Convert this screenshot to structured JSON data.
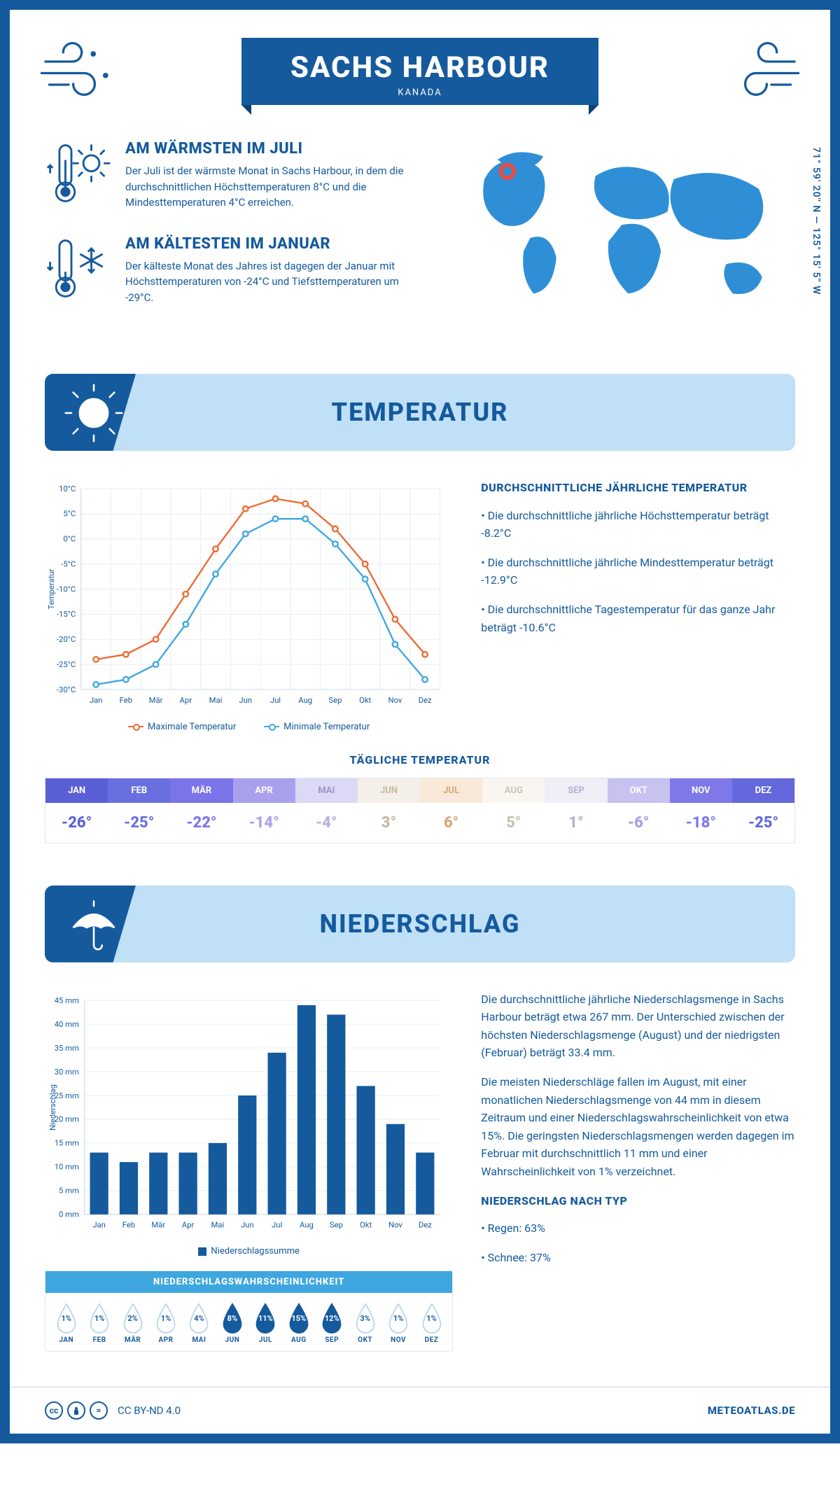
{
  "header": {
    "title": "SACHS HARBOUR",
    "subtitle": "KANADA"
  },
  "coords": "71° 59' 20'' N — 125° 15' 5'' W",
  "facts": {
    "warm": {
      "title": "AM WÄRMSTEN IM JULI",
      "text": "Der Juli ist der wärmste Monat in Sachs Harbour, in dem die durchschnittlichen Höchsttemperaturen 8°C und die Mindesttemperaturen 4°C erreichen."
    },
    "cold": {
      "title": "AM KÄLTESTEN IM JANUAR",
      "text": "Der kälteste Monat des Jahres ist dagegen der Januar mit Höchsttemperaturen von -24°C und Tiefsttemperaturen um -29°C."
    }
  },
  "map": {
    "marker_color": "#ef4b3f",
    "land_color": "#2f8fd6"
  },
  "sections": {
    "temp_title": "TEMPERATUR",
    "precip_title": "NIEDERSCHLAG"
  },
  "months": [
    "Jan",
    "Feb",
    "Mär",
    "Apr",
    "Mai",
    "Jun",
    "Jul",
    "Aug",
    "Sep",
    "Okt",
    "Nov",
    "Dez"
  ],
  "months_uc": [
    "JAN",
    "FEB",
    "MÄR",
    "APR",
    "MAI",
    "JUN",
    "JUL",
    "AUG",
    "SEP",
    "OKT",
    "NOV",
    "DEZ"
  ],
  "temp_chart": {
    "type": "line",
    "ylabel": "Temperatur",
    "ymin": -30,
    "ymax": 10,
    "ystep": 5,
    "unit_suffix": "°C",
    "max_series": {
      "label": "Maximale Temperatur",
      "color": "#ed6b33",
      "values": [
        -24,
        -23,
        -20,
        -11,
        -2,
        6,
        8,
        7,
        2,
        -5,
        -16,
        -23
      ]
    },
    "min_series": {
      "label": "Minimale Temperatur",
      "color": "#3ea7e0",
      "values": [
        -29,
        -28,
        -25,
        -17,
        -7,
        1,
        4,
        4,
        -1,
        -8,
        -21,
        -28
      ]
    },
    "grid_color": "#e5ecf5",
    "axis_color": "#c8d7ea",
    "bg": "#ffffff"
  },
  "temp_text": {
    "title": "DURCHSCHNITTLICHE JÄHRLICHE TEMPERATUR",
    "b1": "• Die durchschnittliche jährliche Höchsttemperatur beträgt -8.2°C",
    "b2": "• Die durchschnittliche jährliche Mindesttemperatur beträgt -12.9°C",
    "b3": "• Die durchschnittliche Tagestemperatur für das ganze Jahr beträgt -10.6°C"
  },
  "temp_table": {
    "title": "TÄGLICHE TEMPERATUR",
    "values": [
      "-26°",
      "-25°",
      "-22°",
      "-14°",
      "-4°",
      "3°",
      "6°",
      "5°",
      "1°",
      "-6°",
      "-18°",
      "-25°"
    ],
    "header_colors": [
      "#5a5fd6",
      "#6a6fe0",
      "#7b74e8",
      "#a9a1ee",
      "#dcd9f6",
      "#f5efe9",
      "#f9e9d9",
      "#f9f6f1",
      "#efedf6",
      "#c7c2f0",
      "#7f78e9",
      "#6468dc"
    ],
    "header_text_colors": [
      "#ffffff",
      "#ffffff",
      "#ffffff",
      "#ffffff",
      "#9a96c8",
      "#c7b79d",
      "#d6a873",
      "#c9c3b4",
      "#b4b0cf",
      "#ffffff",
      "#ffffff",
      "#ffffff"
    ],
    "value_text_colors": [
      "#5a5fd6",
      "#6a6fe0",
      "#7b74e8",
      "#a9a1ee",
      "#b7b3d9",
      "#c7b79d",
      "#d6a873",
      "#c9c3b4",
      "#b4b0cf",
      "#a39ee0",
      "#7f78e9",
      "#6468dc"
    ]
  },
  "precip_chart": {
    "type": "bar",
    "ylabel": "Niederschlag",
    "ymin": 0,
    "ymax": 45,
    "ystep": 5,
    "unit_suffix": " mm",
    "values": [
      13,
      11,
      13,
      13,
      15,
      25,
      34,
      44,
      42,
      27,
      19,
      13
    ],
    "bar_color": "#155a9d",
    "legend": "Niederschlagssumme",
    "grid_color": "#e5ecf5",
    "axis_color": "#c8d7ea"
  },
  "precip_text": {
    "p1": "Die durchschnittliche jährliche Niederschlagsmenge in Sachs Harbour beträgt etwa 267 mm. Der Unterschied zwischen der höchsten Niederschlagsmenge (August) und der niedrigsten (Februar) beträgt 33.4 mm.",
    "p2": "Die meisten Niederschläge fallen im August, mit einer monatlichen Niederschlagsmenge von 44 mm in diesem Zeitraum und einer Niederschlagswahrscheinlichkeit von etwa 15%. Die geringsten Niederschlagsmengen werden dagegen im Februar mit durchschnittlich 11 mm und einer Wahrscheinlichkeit von 1% verzeichnet.",
    "bytype_title": "NIEDERSCHLAG NACH TYP",
    "bytype_1": "• Regen: 63%",
    "bytype_2": "• Schnee: 37%"
  },
  "precip_prob": {
    "title": "NIEDERSCHLAGSWAHRSCHEINLICHKEIT",
    "values": [
      "1%",
      "1%",
      "2%",
      "1%",
      "4%",
      "8%",
      "11%",
      "15%",
      "12%",
      "3%",
      "1%",
      "1%"
    ],
    "filled": [
      false,
      false,
      false,
      false,
      false,
      true,
      true,
      true,
      true,
      false,
      false,
      false
    ],
    "fill_color": "#155a9d",
    "outline_color": "#bcd7ef"
  },
  "footer": {
    "license": "CC BY-ND 4.0",
    "site": "METEOATLAS.DE"
  }
}
